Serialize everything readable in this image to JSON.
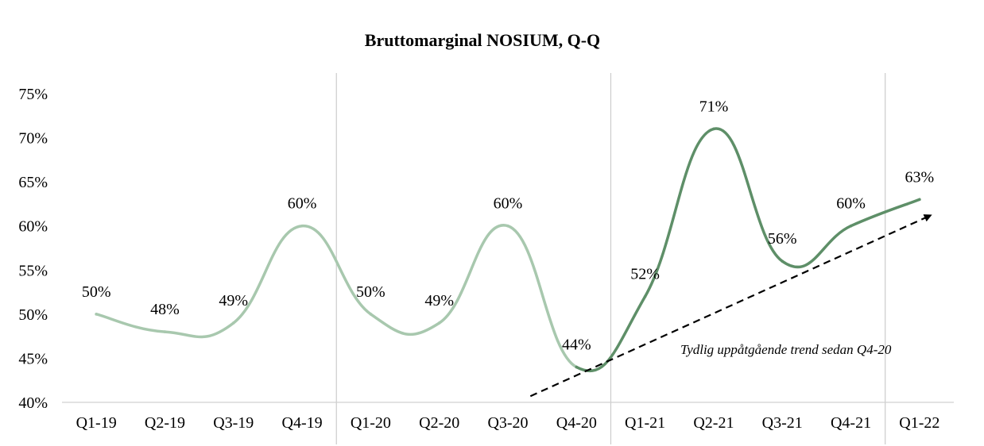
{
  "chart_data": {
    "type": "line",
    "title": "Bruttomarginal NOSIUM, Q-Q",
    "xlabel": "",
    "ylabel": "",
    "categories": [
      "Q1-19",
      "Q2-19",
      "Q3-19",
      "Q4-19",
      "Q1-20",
      "Q2-20",
      "Q3-20",
      "Q4-20",
      "Q1-21",
      "Q2-21",
      "Q3-21",
      "Q4-21",
      "Q1-22"
    ],
    "values": [
      50,
      48,
      49,
      60,
      50,
      49,
      60,
      44,
      52,
      71,
      56,
      60,
      63
    ],
    "data_labels": [
      "50%",
      "48%",
      "49%",
      "60%",
      "50%",
      "49%",
      "60%",
      "44%",
      "52%",
      "71%",
      "56%",
      "60%",
      "63%"
    ],
    "ylim": [
      40,
      75
    ],
    "yticks": [
      40,
      45,
      50,
      55,
      60,
      65,
      70,
      75
    ],
    "ytick_labels": [
      "40%",
      "45%",
      "50%",
      "55%",
      "60%",
      "65%",
      "70%",
      "75%"
    ],
    "grid": false,
    "legend": "none",
    "series_colors": {
      "light": "#a8c8ae",
      "dark": "#5e8f68"
    },
    "dark_from_category": "Q4-20",
    "separators_after": [
      "Q4-19",
      "Q4-20",
      "Q4-21"
    ],
    "annotation": {
      "text": "Tydlig uppåtgående trend sedan Q4-20",
      "arrow_from": [
        "Q4-20",
        40.7
      ],
      "arrow_to": [
        "Q1-22",
        61.2
      ]
    }
  }
}
